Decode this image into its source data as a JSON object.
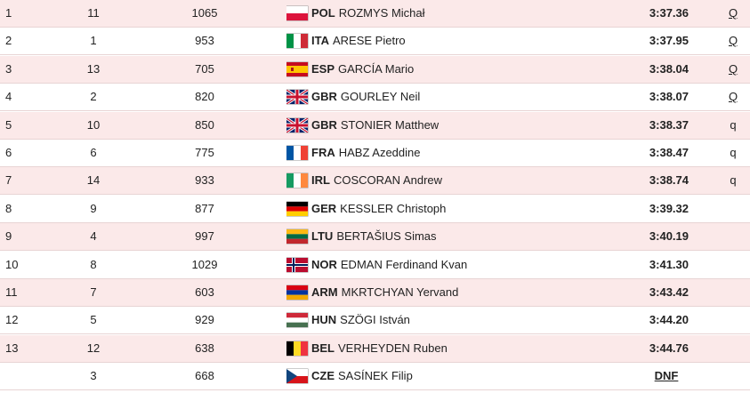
{
  "rows": [
    {
      "rank": "1",
      "lane": "11",
      "bib": "1065",
      "noc": "POL",
      "name": "ROZMYS Michał",
      "time": "3:37.36",
      "qual": "Q",
      "flag_icon": "poland-flag-icon"
    },
    {
      "rank": "2",
      "lane": "1",
      "bib": "953",
      "noc": "ITA",
      "name": "ARESE Pietro",
      "time": "3:37.95",
      "qual": "Q",
      "flag_icon": "italy-flag-icon"
    },
    {
      "rank": "3",
      "lane": "13",
      "bib": "705",
      "noc": "ESP",
      "name": "GARCÍA Mario",
      "time": "3:38.04",
      "qual": "Q",
      "flag_icon": "spain-flag-icon"
    },
    {
      "rank": "4",
      "lane": "2",
      "bib": "820",
      "noc": "GBR",
      "name": "GOURLEY Neil",
      "time": "3:38.07",
      "qual": "Q",
      "flag_icon": "great-britain-flag-icon"
    },
    {
      "rank": "5",
      "lane": "10",
      "bib": "850",
      "noc": "GBR",
      "name": "STONIER Matthew",
      "time": "3:38.37",
      "qual": "q",
      "flag_icon": "great-britain-flag-icon"
    },
    {
      "rank": "6",
      "lane": "6",
      "bib": "775",
      "noc": "FRA",
      "name": "HABZ Azeddine",
      "time": "3:38.47",
      "qual": "q",
      "flag_icon": "france-flag-icon"
    },
    {
      "rank": "7",
      "lane": "14",
      "bib": "933",
      "noc": "IRL",
      "name": "COSCORAN Andrew",
      "time": "3:38.74",
      "qual": "q",
      "flag_icon": "ireland-flag-icon"
    },
    {
      "rank": "8",
      "lane": "9",
      "bib": "877",
      "noc": "GER",
      "name": "KESSLER Christoph",
      "time": "3:39.32",
      "qual": "",
      "flag_icon": "germany-flag-icon"
    },
    {
      "rank": "9",
      "lane": "4",
      "bib": "997",
      "noc": "LTU",
      "name": "BERTAŠIUS Simas",
      "time": "3:40.19",
      "qual": "",
      "flag_icon": "lithuania-flag-icon"
    },
    {
      "rank": "10",
      "lane": "8",
      "bib": "1029",
      "noc": "NOR",
      "name": "EDMAN Ferdinand Kvan",
      "time": "3:41.30",
      "qual": "",
      "flag_icon": "norway-flag-icon"
    },
    {
      "rank": "11",
      "lane": "7",
      "bib": "603",
      "noc": "ARM",
      "name": "MKRTCHYAN Yervand",
      "time": "3:43.42",
      "qual": "",
      "flag_icon": "armenia-flag-icon"
    },
    {
      "rank": "12",
      "lane": "5",
      "bib": "929",
      "noc": "HUN",
      "name": "SZÖGI István",
      "time": "3:44.20",
      "qual": "",
      "flag_icon": "hungary-flag-icon"
    },
    {
      "rank": "13",
      "lane": "12",
      "bib": "638",
      "noc": "BEL",
      "name": "VERHEYDEN Ruben",
      "time": "3:44.76",
      "qual": "",
      "flag_icon": "belgium-flag-icon"
    },
    {
      "rank": "",
      "lane": "3",
      "bib": "668",
      "noc": "CZE",
      "name": "SASÍNEK Filip",
      "time": "DNF",
      "qual": "",
      "flag_icon": "czech-republic-flag-icon"
    }
  ],
  "colors": {
    "row_odd": "#fbe9e9",
    "row_even": "#ffffff",
    "row_border": "#e8d4d4",
    "text": "#222222"
  }
}
